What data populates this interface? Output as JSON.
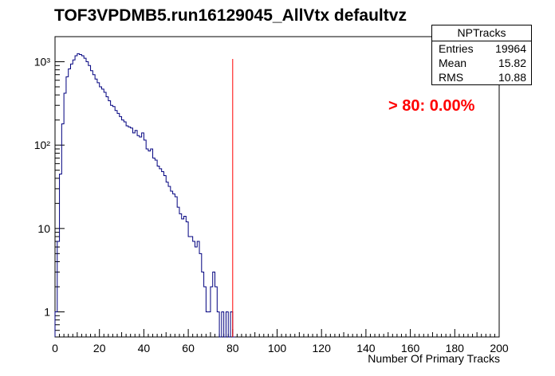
{
  "title": "TOF3VPDMB5.run16129045_AllVtx defaultvz",
  "stats_box": {
    "name": "NPTracks",
    "rows": [
      {
        "label": "Entries",
        "value": "19964"
      },
      {
        "label": "Mean",
        "value": "15.82"
      },
      {
        "label": "RMS",
        "value": "10.88"
      }
    ]
  },
  "annotation": "> 80: 0.00%",
  "chart_data": {
    "type": "bar",
    "histogram": true,
    "xlabel": "Number Of Primary Tracks",
    "ylabel": "",
    "xlim": [
      0,
      200
    ],
    "ylim": [
      0.5,
      2000
    ],
    "yscale": "log",
    "x_ticks": [
      0,
      20,
      40,
      60,
      80,
      100,
      120,
      140,
      160,
      180,
      200
    ],
    "y_ticks": [
      {
        "value": 1,
        "label": "1"
      },
      {
        "value": 10,
        "label": "10"
      },
      {
        "value": 100,
        "label": "10²"
      },
      {
        "value": 1000,
        "label": "10³"
      }
    ],
    "bin_width": 1,
    "bin_start": 0,
    "values": [
      1,
      7,
      45,
      180,
      420,
      660,
      820,
      940,
      1050,
      1180,
      1250,
      1220,
      1180,
      1100,
      1000,
      900,
      780,
      700,
      620,
      560,
      500,
      470,
      430,
      380,
      340,
      300,
      290,
      260,
      240,
      220,
      200,
      190,
      170,
      165,
      160,
      140,
      150,
      130,
      125,
      140,
      115,
      90,
      85,
      90,
      70,
      66,
      56,
      52,
      48,
      43,
      36,
      32,
      28,
      26,
      24,
      18,
      15,
      13,
      14,
      12,
      8,
      8,
      7,
      6,
      7,
      5,
      3,
      2,
      1,
      1,
      2,
      3,
      2,
      1,
      0.5,
      1,
      0,
      1,
      0.5,
      1,
      0
    ],
    "series_color": "#00007f",
    "cut_line": {
      "x": 80,
      "color": "#ff0000"
    },
    "grid": false
  }
}
